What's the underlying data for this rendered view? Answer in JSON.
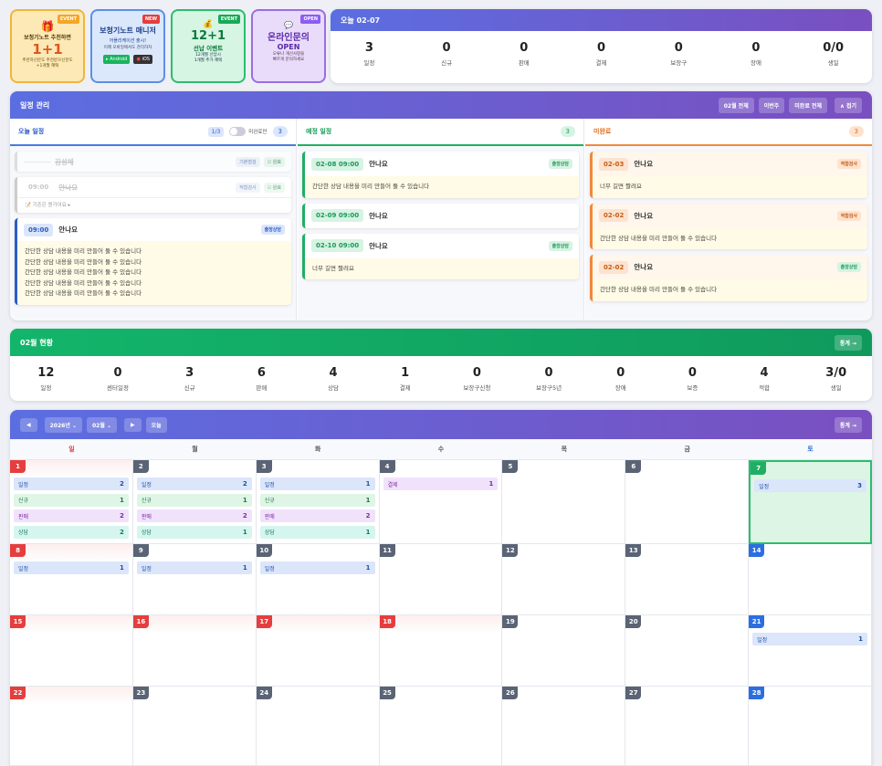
{
  "promos": [
    {
      "badge": "EVENT",
      "icon": "🎁",
      "t1": "보청기노트 추천하면",
      "big": "1+1",
      "s1": "추천하신분도 추천받으신분도",
      "s2": "+1개월 혜택"
    },
    {
      "badge": "NEW",
      "t1": "보청기노트 매니저",
      "s1": "어플리케이션 출시!",
      "s2": "이제 모바일에서도 관리하자",
      "android": "Android",
      "ios": "iOS"
    },
    {
      "badge": "EVENT",
      "icon": "💰",
      "big": "12+1",
      "t1": "선납 이벤트",
      "s1": "12개월 선납시",
      "s2": "1개월 추가 혜택"
    },
    {
      "badge": "OPEN",
      "icon": "💬",
      "t1": "온라인문의",
      "big": "OPEN",
      "s1": "오류나 개선사항을",
      "s2": "빠르게 문의하세요"
    }
  ],
  "today": {
    "title": "오늘 02-07",
    "stats": [
      {
        "n": "3",
        "l": "일정"
      },
      {
        "n": "0",
        "l": "신규"
      },
      {
        "n": "0",
        "l": "판매"
      },
      {
        "n": "0",
        "l": "결제"
      },
      {
        "n": "0",
        "l": "보장구"
      },
      {
        "n": "0",
        "l": "장애"
      },
      {
        "n": "0/0",
        "l": "생일"
      }
    ]
  },
  "schedule": {
    "title": "일정 관리",
    "btns": [
      "02월 전체",
      "이번주",
      "미완료 전체",
      "∧ 접기"
    ],
    "today_col": {
      "title": "오늘 일정",
      "page": "1/3",
      "toggle": "미완료만",
      "count": "3",
      "e1": {
        "name": "김성체",
        "tag": "기본점검",
        "done": "완료"
      },
      "e2": {
        "time": "09:00",
        "name": "안나요",
        "tag": "적합검사",
        "done": "완료",
        "note": "기존은 뭔가이요 ▸"
      },
      "e3": {
        "time": "09:00",
        "name": "안나요",
        "tag": "출장상담",
        "lines": [
          "간단한 상담 내용을 미리 만들어 둘 수 있습니다",
          "간단한 상담 내용을 미리 만들어 둘 수 있습니다",
          "간단한 상담 내용을 미리 만들어 둘 수 있습니다",
          "간단한 상담 내용을 미리 만들어 둘 수 있습니다",
          "간단한 상담 내용을 미리 만들어 둘 수 있습니다"
        ]
      }
    },
    "planned": {
      "title": "예정 일정",
      "count": "3",
      "items": [
        {
          "time": "02-08 09:00",
          "name": "안나요",
          "tag": "출장상담",
          "body": "간단한 상담 내용을 미리 만들어 둘 수 있습니다"
        },
        {
          "time": "02-09 09:00",
          "name": "안나요",
          "tag": "",
          "body": ""
        },
        {
          "time": "02-10 09:00",
          "name": "안나요",
          "tag": "출장상담",
          "body": "너무 길면 짤려요"
        }
      ]
    },
    "pending": {
      "title": "미완료",
      "count": "3",
      "items": [
        {
          "time": "02-03",
          "name": "안나요",
          "tag": "적합검사",
          "body": "너무 길면 짤려요"
        },
        {
          "time": "02-02",
          "name": "안나요",
          "tag": "적합검사",
          "body": "간단한 상담 내용을 미리 만들어 둘 수 있습니다"
        },
        {
          "time": "02-02",
          "name": "안나요",
          "tag": "출장상담",
          "body": "간단한 상담 내용을 미리 만들어 둘 수 있습니다"
        }
      ]
    }
  },
  "month": {
    "title": "02월 현황",
    "btn": "통계 →",
    "stats": [
      {
        "n": "12",
        "l": "일정"
      },
      {
        "n": "0",
        "l": "센터일정"
      },
      {
        "n": "3",
        "l": "신규"
      },
      {
        "n": "6",
        "l": "판매"
      },
      {
        "n": "4",
        "l": "상담"
      },
      {
        "n": "1",
        "l": "결제"
      },
      {
        "n": "0",
        "l": "보장구신청"
      },
      {
        "n": "0",
        "l": "보장구5년"
      },
      {
        "n": "0",
        "l": "장애"
      },
      {
        "n": "0",
        "l": "보증"
      },
      {
        "n": "4",
        "l": "적합"
      },
      {
        "n": "3/0",
        "l": "생일"
      }
    ]
  },
  "calendar": {
    "prev": "◀",
    "year": "2026년",
    "month": "02월",
    "next": "▶",
    "today": "오늘",
    "stats_btn": "통계 →",
    "weekdays": [
      "일",
      "월",
      "화",
      "수",
      "목",
      "금",
      "토"
    ],
    "days": [
      {
        "d": "1",
        "c": [
          [
            "일정",
            "2",
            "s"
          ],
          [
            "신규",
            "1",
            "n"
          ],
          [
            "판매",
            "2",
            "p"
          ],
          [
            "상담",
            "2",
            "c"
          ]
        ]
      },
      {
        "d": "2",
        "c": [
          [
            "일정",
            "2",
            "s"
          ],
          [
            "신규",
            "1",
            "n"
          ],
          [
            "판매",
            "2",
            "p"
          ],
          [
            "상담",
            "1",
            "c"
          ]
        ]
      },
      {
        "d": "3",
        "c": [
          [
            "일정",
            "1",
            "s"
          ],
          [
            "신규",
            "1",
            "n"
          ],
          [
            "판매",
            "2",
            "p"
          ],
          [
            "상담",
            "1",
            "c"
          ]
        ]
      },
      {
        "d": "4",
        "c": [
          [
            "결제",
            "1",
            "p"
          ]
        ]
      },
      {
        "d": "5",
        "c": []
      },
      {
        "d": "6",
        "c": []
      },
      {
        "d": "7",
        "c": [
          [
            "일정",
            "3",
            "s"
          ]
        ]
      },
      {
        "d": "8",
        "c": [
          [
            "일정",
            "1",
            "s"
          ]
        ]
      },
      {
        "d": "9",
        "c": [
          [
            "일정",
            "1",
            "s"
          ]
        ]
      },
      {
        "d": "10",
        "c": [
          [
            "일정",
            "1",
            "s"
          ]
        ]
      },
      {
        "d": "11",
        "c": []
      },
      {
        "d": "12",
        "c": []
      },
      {
        "d": "13",
        "c": []
      },
      {
        "d": "14",
        "c": []
      },
      {
        "d": "15",
        "c": []
      },
      {
        "d": "16",
        "c": []
      },
      {
        "d": "17",
        "c": []
      },
      {
        "d": "18",
        "c": []
      },
      {
        "d": "19",
        "c": []
      },
      {
        "d": "20",
        "c": []
      },
      {
        "d": "21",
        "c": [
          [
            "일정",
            "1",
            "s"
          ]
        ]
      },
      {
        "d": "22",
        "c": []
      },
      {
        "d": "23",
        "c": []
      },
      {
        "d": "24",
        "c": []
      },
      {
        "d": "25",
        "c": []
      },
      {
        "d": "26",
        "c": []
      },
      {
        "d": "27",
        "c": []
      },
      {
        "d": "28",
        "c": []
      }
    ],
    "red_days": [
      "15",
      "16",
      "17",
      "18"
    ],
    "today_day": "7"
  }
}
